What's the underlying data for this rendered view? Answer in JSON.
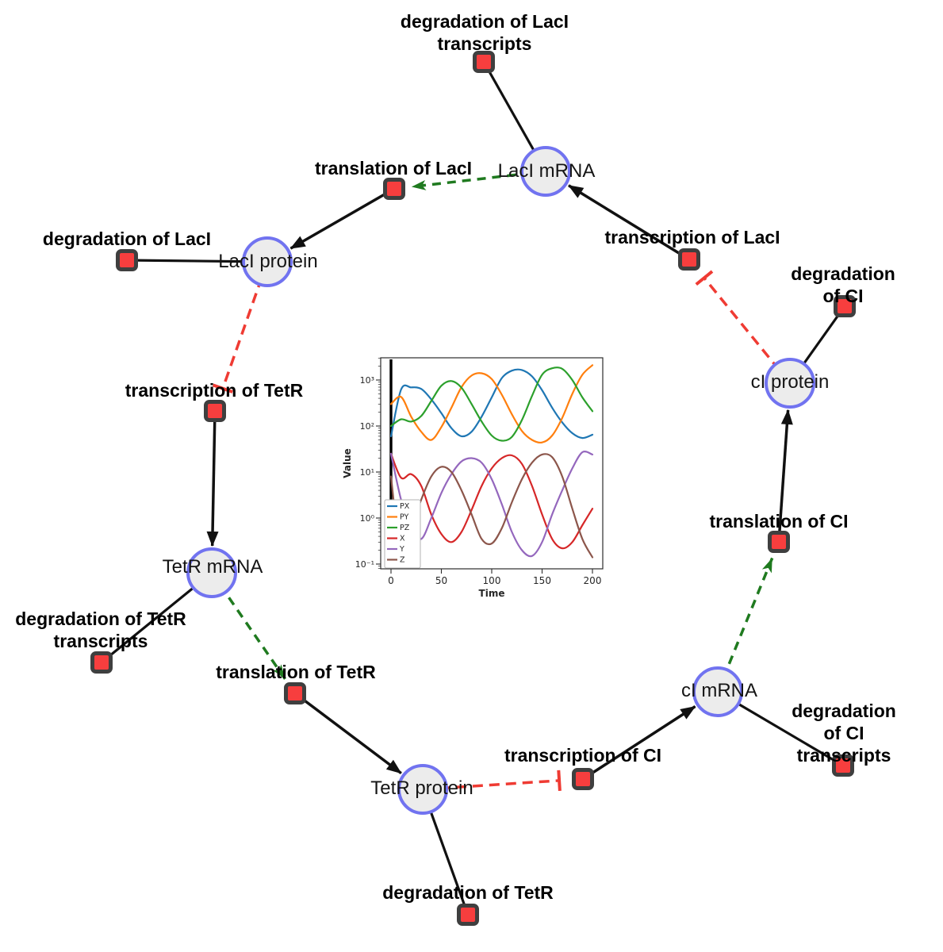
{
  "diagram": {
    "species": [
      {
        "id": "laci-mrna",
        "label": "LacI mRNA"
      },
      {
        "id": "laci-protein",
        "label": "LacI protein"
      },
      {
        "id": "tetr-mrna",
        "label": "TetR mRNA"
      },
      {
        "id": "tetr-protein",
        "label": "TetR protein"
      },
      {
        "id": "ci-mrna",
        "label": "cI mRNA"
      },
      {
        "id": "ci-protein",
        "label": "cI protein"
      }
    ],
    "reactions": [
      {
        "id": "deg-laci-transcripts",
        "label": "degradation of LacI\ntranscripts"
      },
      {
        "id": "translation-laci",
        "label": "translation of LacI"
      },
      {
        "id": "transcription-laci",
        "label": "transcription of LacI"
      },
      {
        "id": "deg-laci",
        "label": "degradation of LacI"
      },
      {
        "id": "deg-ci",
        "label": "degradation of CI"
      },
      {
        "id": "transcription-tetr",
        "label": "transcription of TetR"
      },
      {
        "id": "deg-tetr-transcripts",
        "label": "degradation of TetR\ntranscripts"
      },
      {
        "id": "translation-tetr",
        "label": "translation of TetR"
      },
      {
        "id": "translation-ci",
        "label": "translation of CI"
      },
      {
        "id": "transcription-ci",
        "label": "transcription of CI"
      },
      {
        "id": "deg-ci-transcripts",
        "label": "degradation of CI\ntranscripts"
      },
      {
        "id": "deg-tetr",
        "label": "degradation of TetR"
      }
    ],
    "edges": [
      {
        "from": "LacI mRNA",
        "to": "degradation of LacI transcripts",
        "type": "consumption"
      },
      {
        "from": "transcription of LacI",
        "to": "LacI mRNA",
        "type": "production-arrow"
      },
      {
        "from": "LacI mRNA",
        "to": "translation of LacI",
        "type": "modifier-green-dashed"
      },
      {
        "from": "translation of LacI",
        "to": "LacI protein",
        "type": "production-arrow"
      },
      {
        "from": "LacI protein",
        "to": "degradation of LacI",
        "type": "consumption"
      },
      {
        "from": "LacI protein",
        "to": "transcription of TetR",
        "type": "inhibition-red-dashed"
      },
      {
        "from": "transcription of TetR",
        "to": "TetR mRNA",
        "type": "production-arrow"
      },
      {
        "from": "TetR mRNA",
        "to": "degradation of TetR transcripts",
        "type": "consumption"
      },
      {
        "from": "TetR mRNA",
        "to": "translation of TetR",
        "type": "modifier-green-dashed"
      },
      {
        "from": "translation of TetR",
        "to": "TetR protein",
        "type": "production-arrow"
      },
      {
        "from": "TetR protein",
        "to": "degradation of TetR",
        "type": "consumption"
      },
      {
        "from": "TetR protein",
        "to": "transcription of CI",
        "type": "inhibition-red-dashed"
      },
      {
        "from": "transcription of CI",
        "to": "cI mRNA",
        "type": "production-arrow"
      },
      {
        "from": "cI mRNA",
        "to": "degradation of CI transcripts",
        "type": "consumption"
      },
      {
        "from": "cI mRNA",
        "to": "translation of CI",
        "type": "modifier-green-dashed"
      },
      {
        "from": "translation of CI",
        "to": "cI protein",
        "type": "production-arrow"
      },
      {
        "from": "cI protein",
        "to": "degradation of CI",
        "type": "consumption"
      },
      {
        "from": "cI protein",
        "to": "transcription of LacI",
        "type": "inhibition-red-dashed"
      }
    ],
    "colors": {
      "species_fill": "#ececec",
      "species_border": "#7173f0",
      "reaction_fill": "#f73e3e",
      "reaction_border": "#3f3f3f",
      "edge_black": "#111111",
      "edge_green": "#1f7a1f",
      "edge_red": "#ef3b33"
    }
  },
  "chart_data": {
    "type": "line",
    "title": "",
    "xlabel": "Time",
    "ylabel": "Value",
    "x_ticks": [
      0,
      50,
      100,
      150,
      200
    ],
    "x_tick_labels": [
      "0",
      "50",
      "100",
      "150",
      "200"
    ],
    "y_scale": "log",
    "y_ticks_exp": [
      -1,
      0,
      1,
      2,
      3
    ],
    "y_tick_labels": [
      "10⁻¹",
      "10⁰",
      "10¹",
      "10²",
      "10³"
    ],
    "xlim": [
      -10,
      210
    ],
    "ylim_exp": [
      -1.1,
      3.48
    ],
    "legend_position": "lower left",
    "grid": false,
    "vline_at_x": 0,
    "x": [
      0,
      10,
      20,
      30,
      40,
      50,
      60,
      70,
      80,
      90,
      100,
      110,
      120,
      130,
      140,
      150,
      160,
      170,
      180,
      190,
      200
    ],
    "series": [
      {
        "name": "PX",
        "color": "#1f77b4",
        "values": [
          60,
          620,
          690,
          640,
          380,
          190,
          90,
          60,
          75,
          160,
          420,
          1100,
          1600,
          1650,
          1200,
          600,
          250,
          120,
          70,
          55,
          65
        ]
      },
      {
        "name": "PY",
        "color": "#ff7f0e",
        "values": [
          300,
          430,
          160,
          75,
          50,
          95,
          250,
          700,
          1250,
          1400,
          1050,
          480,
          180,
          78,
          50,
          44,
          62,
          150,
          500,
          1300,
          2100
        ]
      },
      {
        "name": "PZ",
        "color": "#2ca02c",
        "values": [
          100,
          140,
          125,
          165,
          350,
          750,
          950,
          680,
          300,
          125,
          62,
          48,
          58,
          135,
          450,
          1300,
          1800,
          1750,
          1000,
          420,
          210
        ]
      },
      {
        "name": "X",
        "color": "#d62728",
        "values": [
          25,
          7.5,
          9,
          5,
          1.2,
          0.45,
          0.3,
          0.5,
          1.5,
          5,
          12,
          20,
          23,
          15,
          5,
          1.2,
          0.35,
          0.22,
          0.3,
          0.7,
          1.6
        ]
      },
      {
        "name": "Y",
        "color": "#9467bd",
        "values": [
          25,
          2.5,
          0.6,
          0.35,
          1.0,
          3.5,
          9,
          17,
          20,
          16,
          7,
          2,
          0.5,
          0.2,
          0.15,
          0.3,
          1.2,
          4,
          12,
          27,
          24
        ]
      },
      {
        "name": "Z",
        "color": "#8c564b",
        "values": [
          8,
          0.15,
          0.6,
          2.5,
          8,
          13,
          10,
          4,
          1.2,
          0.35,
          0.28,
          0.6,
          2.2,
          7,
          16,
          24,
          21,
          8,
          1.6,
          0.35,
          0.14
        ]
      }
    ]
  }
}
